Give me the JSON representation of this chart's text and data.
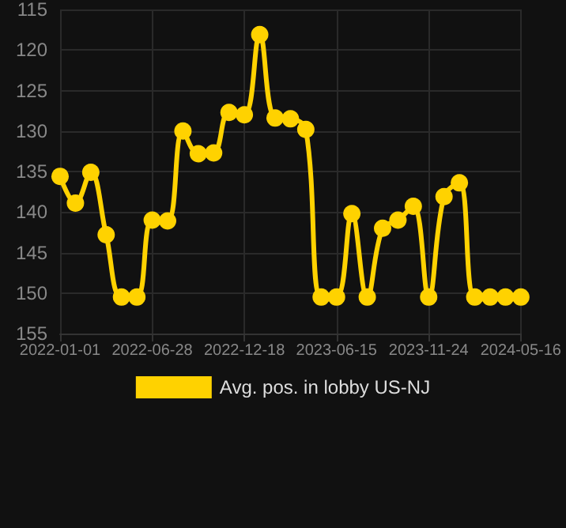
{
  "chart_data": {
    "type": "line",
    "categories": [
      "2022-01-01",
      null,
      null,
      null,
      null,
      null,
      "2022-06-28",
      null,
      null,
      null,
      null,
      null,
      "2022-12-18",
      null,
      null,
      null,
      null,
      null,
      "2023-06-15",
      null,
      null,
      null,
      null,
      null,
      "2023-11-24",
      null,
      null,
      null,
      null,
      null,
      "2024-05-16"
    ],
    "series": [
      {
        "name": "Avg. pos. in lobby US-NJ",
        "color": "#ffd200",
        "values": [
          135.6,
          138.9,
          135.1,
          142.8,
          150.5,
          150.5,
          141.0,
          141.1,
          130.0,
          132.8,
          132.7,
          127.7,
          128.0,
          118.1,
          128.4,
          128.5,
          129.8,
          150.5,
          150.5,
          140.2,
          150.5,
          142.0,
          141.0,
          139.3,
          150.5,
          138.1,
          136.4,
          150.5,
          150.5,
          150.5,
          150.5
        ]
      }
    ],
    "ylim": [
      155,
      115
    ],
    "yticks": [
      115,
      120,
      125,
      130,
      135,
      140,
      145,
      150,
      155
    ],
    "grid": true,
    "legend": "bottom",
    "marker": "circle",
    "line_style": "solid"
  }
}
